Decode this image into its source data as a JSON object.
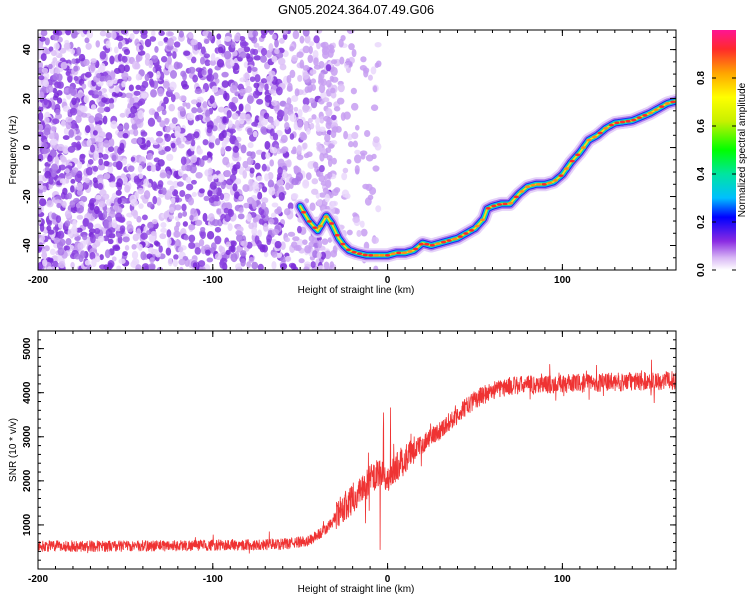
{
  "title": "GN05.2024.364.07.49.G06",
  "chart_data": [
    {
      "type": "heatmap",
      "xlabel": "Height of straight line (km)",
      "ylabel": "Frequency (Hz)",
      "xlim": [
        -200,
        165
      ],
      "ylim": [
        -50,
        48
      ],
      "x_ticks": [
        "-200",
        "-100",
        "0",
        "100"
      ],
      "y_ticks": [
        "40",
        "20",
        "0",
        "-20",
        "-40"
      ],
      "colorbar": {
        "label": "Normalized spectral amplitude",
        "range": [
          0,
          1
        ],
        "ticks": [
          "0.0",
          "0.2",
          "0.4",
          "0.6",
          "0.8"
        ],
        "colors": [
          "#ffffff",
          "#d9b8f5",
          "#8a2be2",
          "#0000ff",
          "#00bfff",
          "#00e5a0",
          "#00ff00",
          "#c8f000",
          "#ffff00",
          "#ffa500",
          "#ff2a2a",
          "#ff1493"
        ]
      },
      "noise_region_x": [
        -200,
        -30
      ],
      "ridge": {
        "x": [
          -50,
          -45,
          -40,
          -35,
          -32,
          -28,
          -25,
          -22,
          -18,
          -12,
          -5,
          0,
          5,
          10,
          15,
          20,
          25,
          30,
          40,
          50,
          55,
          57,
          60,
          65,
          70,
          75,
          80,
          85,
          90,
          95,
          100,
          105,
          110,
          115,
          120,
          125,
          130,
          140,
          150,
          160,
          165
        ],
        "freq": [
          -24,
          -30,
          -34,
          -28,
          -31,
          -37,
          -40,
          -42,
          -43,
          -44,
          -44,
          -44,
          -43,
          -43,
          -42,
          -39,
          -40,
          -39,
          -37,
          -33,
          -29,
          -25,
          -24,
          -23,
          -23,
          -19,
          -16,
          -15,
          -15,
          -14,
          -11,
          -6,
          -2,
          3,
          5,
          8,
          10,
          11,
          14,
          18,
          19
        ]
      }
    },
    {
      "type": "line",
      "xlabel": "Height of straight line (km)",
      "ylabel": "SNR (10 * v/v)",
      "xlim": [
        -200,
        165
      ],
      "ylim": [
        0,
        5400
      ],
      "x_ticks": [
        "-200",
        "-100",
        "0",
        "100"
      ],
      "y_ticks": [
        "5000",
        "4000",
        "3000",
        "2000",
        "1000"
      ],
      "color": "#ef3333",
      "trend": {
        "x": [
          -200,
          -150,
          -100,
          -60,
          -45,
          -35,
          -25,
          -15,
          -5,
          0,
          10,
          20,
          30,
          40,
          50,
          60,
          70,
          80,
          100,
          120,
          140,
          165
        ],
        "y": [
          520,
          520,
          540,
          560,
          640,
          900,
          1400,
          1800,
          2200,
          2100,
          2500,
          2850,
          3150,
          3500,
          3850,
          4050,
          4150,
          4180,
          4200,
          4230,
          4250,
          4280
        ]
      }
    }
  ]
}
